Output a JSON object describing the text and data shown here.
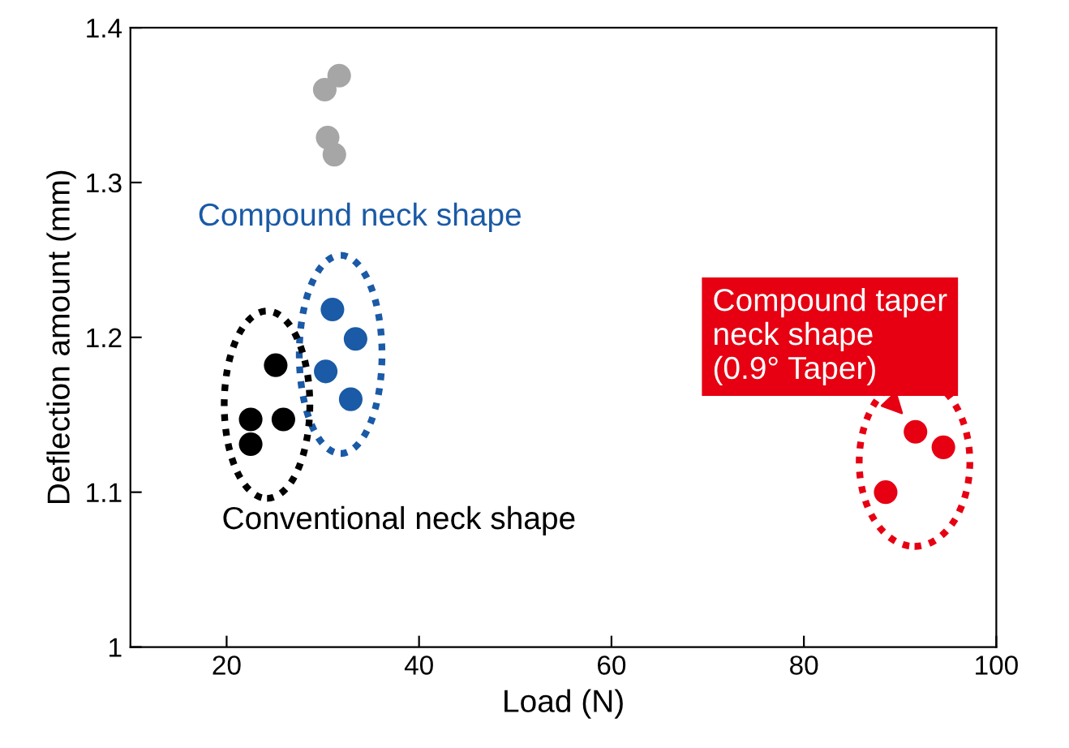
{
  "chart_data": {
    "type": "scatter",
    "xlabel": "Load (N)",
    "ylabel": "Deflection amount (mm)",
    "xlim": [
      10,
      100
    ],
    "xticks": [
      20,
      40,
      60,
      80,
      100
    ],
    "ylim": [
      1,
      1.4
    ],
    "yticks": [
      {
        "value": 1,
        "label": "1"
      },
      1.1,
      1.2,
      1.3,
      1.4
    ],
    "marker": "circle",
    "grid": false,
    "legend": false,
    "series": [
      {
        "color": "#a6a6a6",
        "x": [
          30.2,
          31.7,
          30.5,
          31.2
        ],
        "values": [
          1.36,
          1.369,
          1.329,
          1.318
        ]
      },
      {
        "name": "Compound neck shape",
        "color": "#1a5aa6",
        "x": [
          31.0,
          33.4,
          30.3,
          32.9
        ],
        "values": [
          1.218,
          1.199,
          1.178,
          1.16
        ]
      },
      {
        "name": "Conventional neck shape",
        "color": "#000000",
        "x": [
          25.1,
          22.5,
          25.9,
          22.5
        ],
        "values": [
          1.182,
          1.147,
          1.147,
          1.131
        ]
      },
      {
        "name": "Compound taper\nneck shape\n(0.9° Taper)",
        "color": "#e60012",
        "x": [
          91.6,
          94.5,
          88.5
        ],
        "values": [
          1.139,
          1.129,
          1.1
        ]
      }
    ]
  }
}
